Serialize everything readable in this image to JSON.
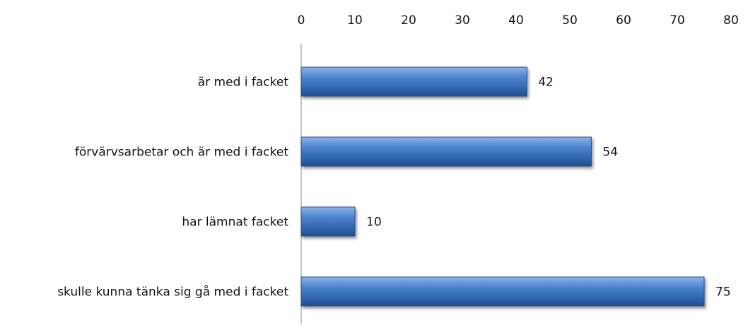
{
  "chart_data": {
    "type": "bar",
    "orientation": "horizontal",
    "categories": [
      "är med i facket",
      "förvärvsarbetar och är med i facket",
      "har lämnat facket",
      "skulle kunna tänka sig gå med i facket"
    ],
    "values": [
      42,
      54,
      10,
      75
    ],
    "xlim": [
      0,
      80
    ],
    "x_ticks": [
      "0",
      "10",
      "20",
      "30",
      "40",
      "50",
      "60",
      "70",
      "80"
    ],
    "x_axis_position": "top",
    "grid": false,
    "legend": "none",
    "bar_color": "#3f78c4",
    "bar_edge_color": "#234f8c"
  }
}
